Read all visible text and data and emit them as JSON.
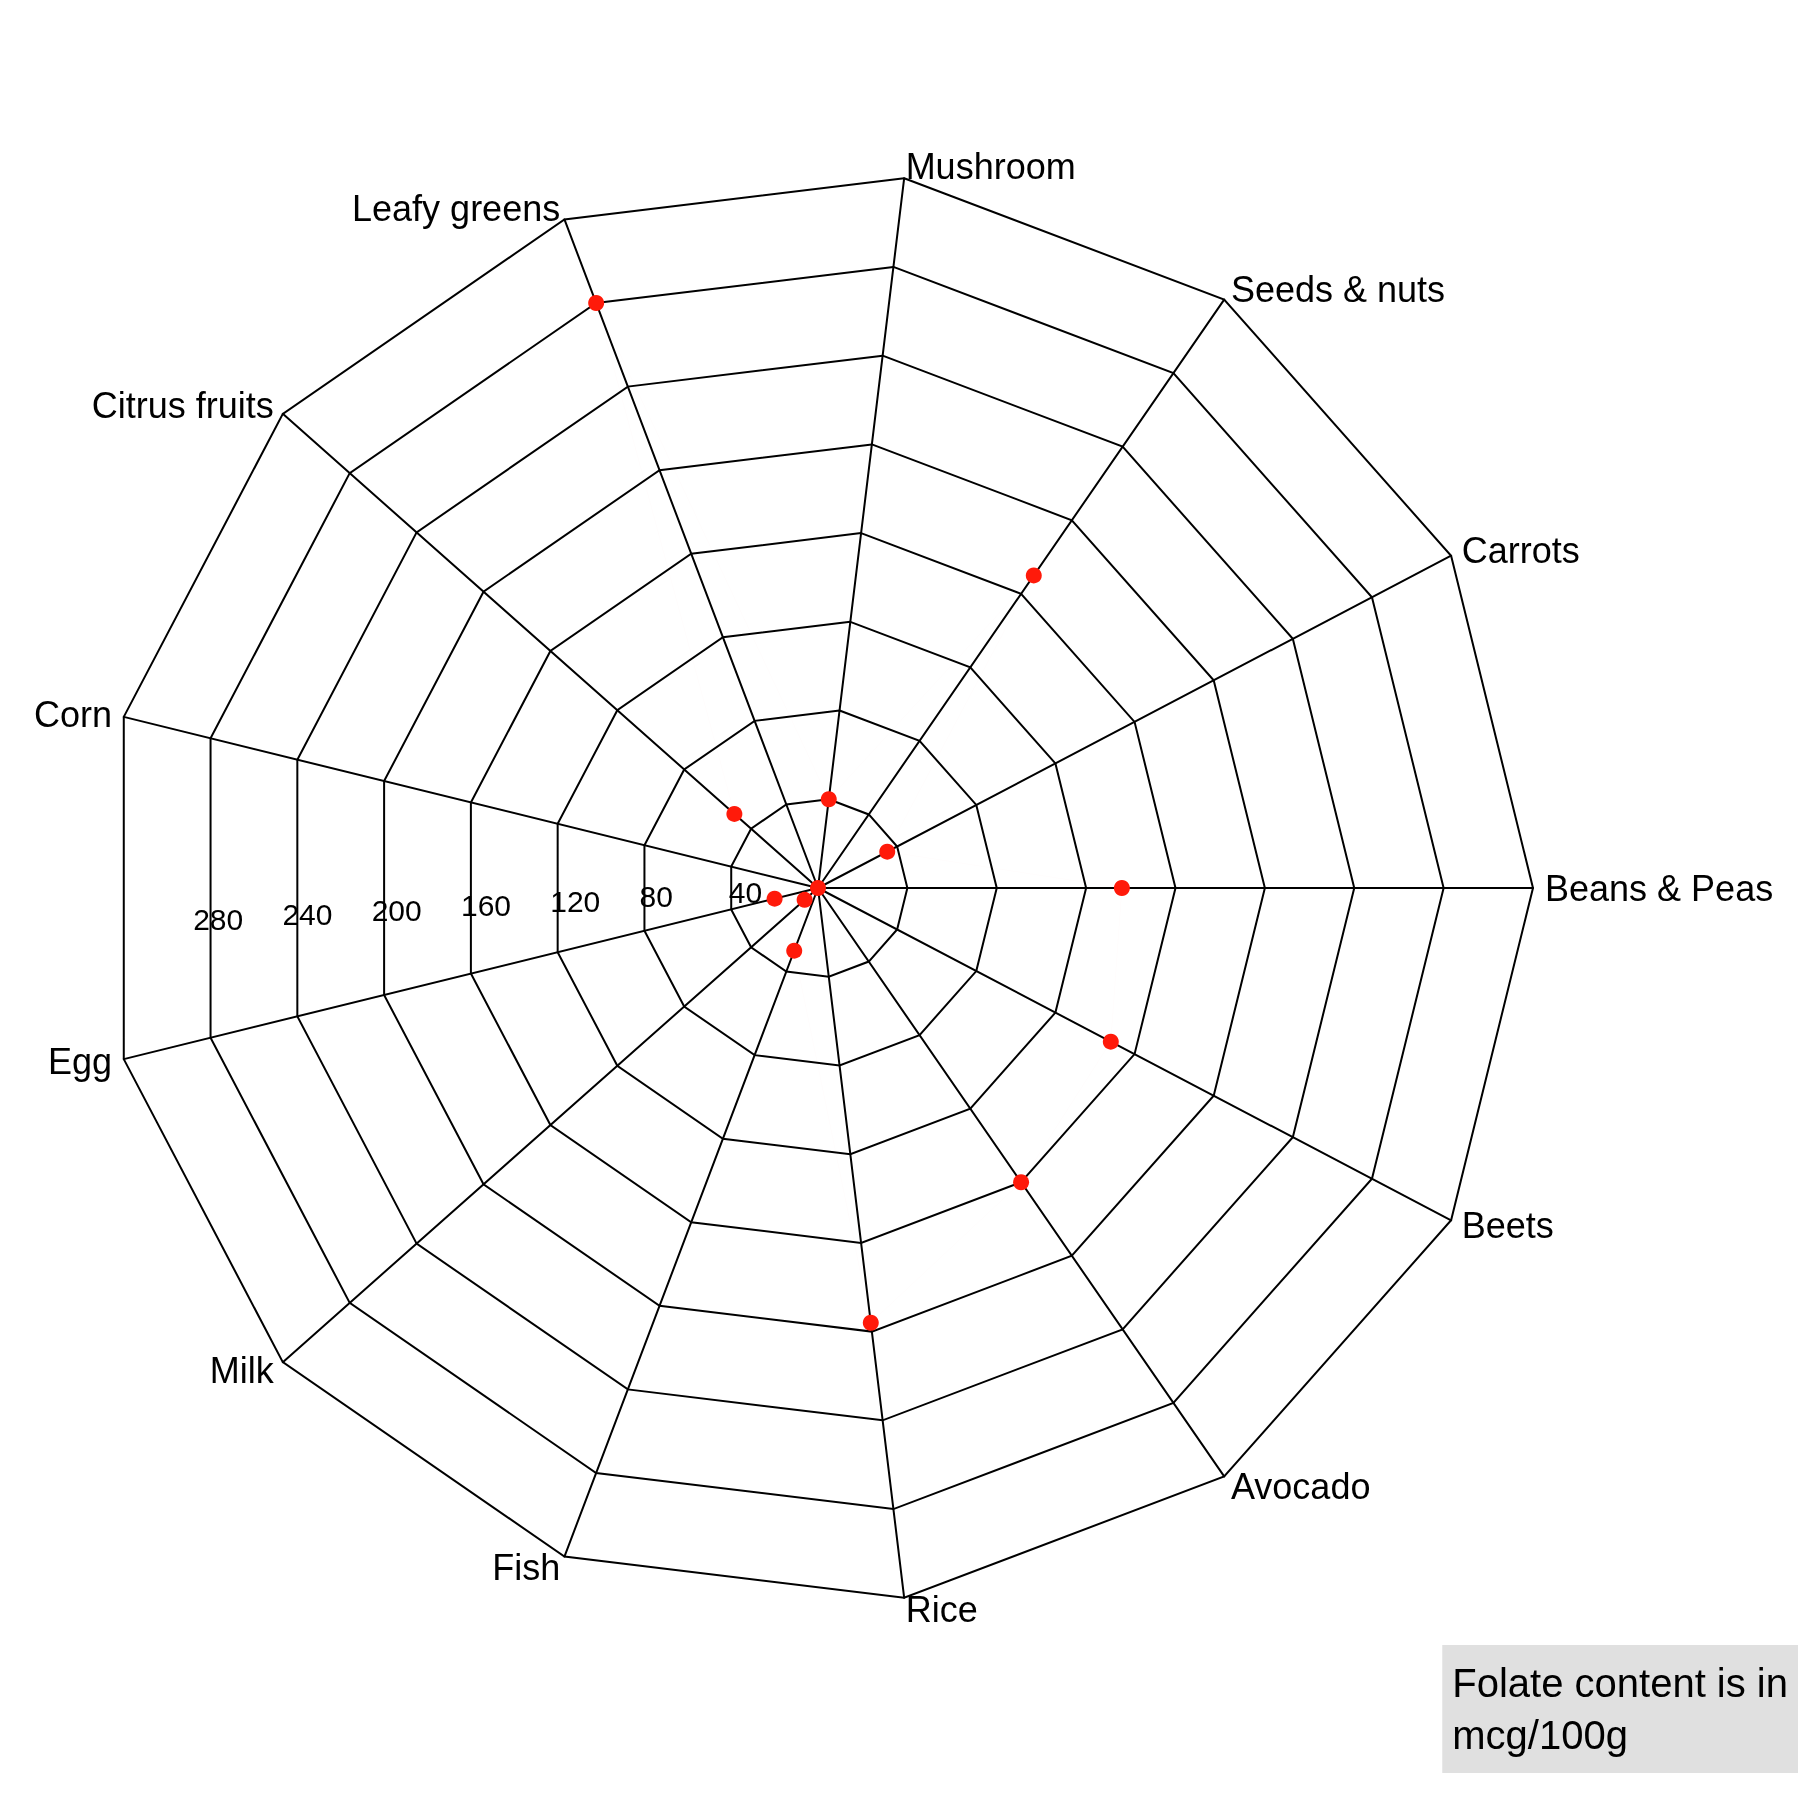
{
  "chart_data": {
    "type": "radar",
    "categories": [
      "Mushroom",
      "Seeds & nuts",
      "Carrots",
      "Beans & Peas",
      "Beets",
      "Avocado",
      "Rice",
      "Fish",
      "Milk",
      "Egg",
      "Corn",
      "Citrus fruits",
      "Leafy greens"
    ],
    "series": [
      {
        "color": "#ff1a0a",
        "values": [
          40,
          170,
          35,
          136,
          148,
          160,
          196,
          30,
          8,
          20,
          0,
          50,
          280
        ]
      }
    ],
    "ylim": [
      0,
      320
    ],
    "yticks": [
      40,
      80,
      120,
      160,
      200,
      240,
      280
    ],
    "marker": "circle",
    "annotations": [
      "Folate content is in mcg/100g"
    ]
  }
}
